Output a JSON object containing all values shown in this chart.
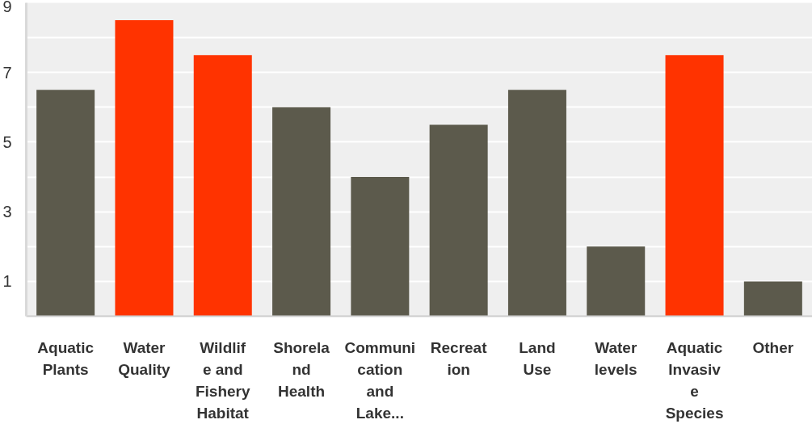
{
  "chart_data": {
    "type": "bar",
    "categories": [
      "Aquatic Plants",
      "Water Quality",
      "Wildlife and Fishery Habitat",
      "Shoreland Health",
      "Communication and Lake...",
      "Recreation",
      "Land Use",
      "Water levels",
      "Aquatic Invasive Species",
      "Other"
    ],
    "values": [
      6.5,
      8.5,
      7.5,
      6,
      4,
      5.5,
      6.5,
      2,
      7.5,
      1
    ],
    "colors": [
      "#5c5a4c",
      "#ff3300",
      "#ff3300",
      "#5c5a4c",
      "#5c5a4c",
      "#5c5a4c",
      "#5c5a4c",
      "#5c5a4c",
      "#ff3300",
      "#5c5a4c"
    ],
    "ylim": [
      0,
      9
    ],
    "yticks": [
      1,
      {
        "value": 2,
        "label": null
      },
      3,
      {
        "value": 4,
        "label": null
      },
      5,
      {
        "value": 6,
        "label": null
      },
      7,
      {
        "value": 8,
        "label": null
      },
      9
    ],
    "grid": "y"
  }
}
